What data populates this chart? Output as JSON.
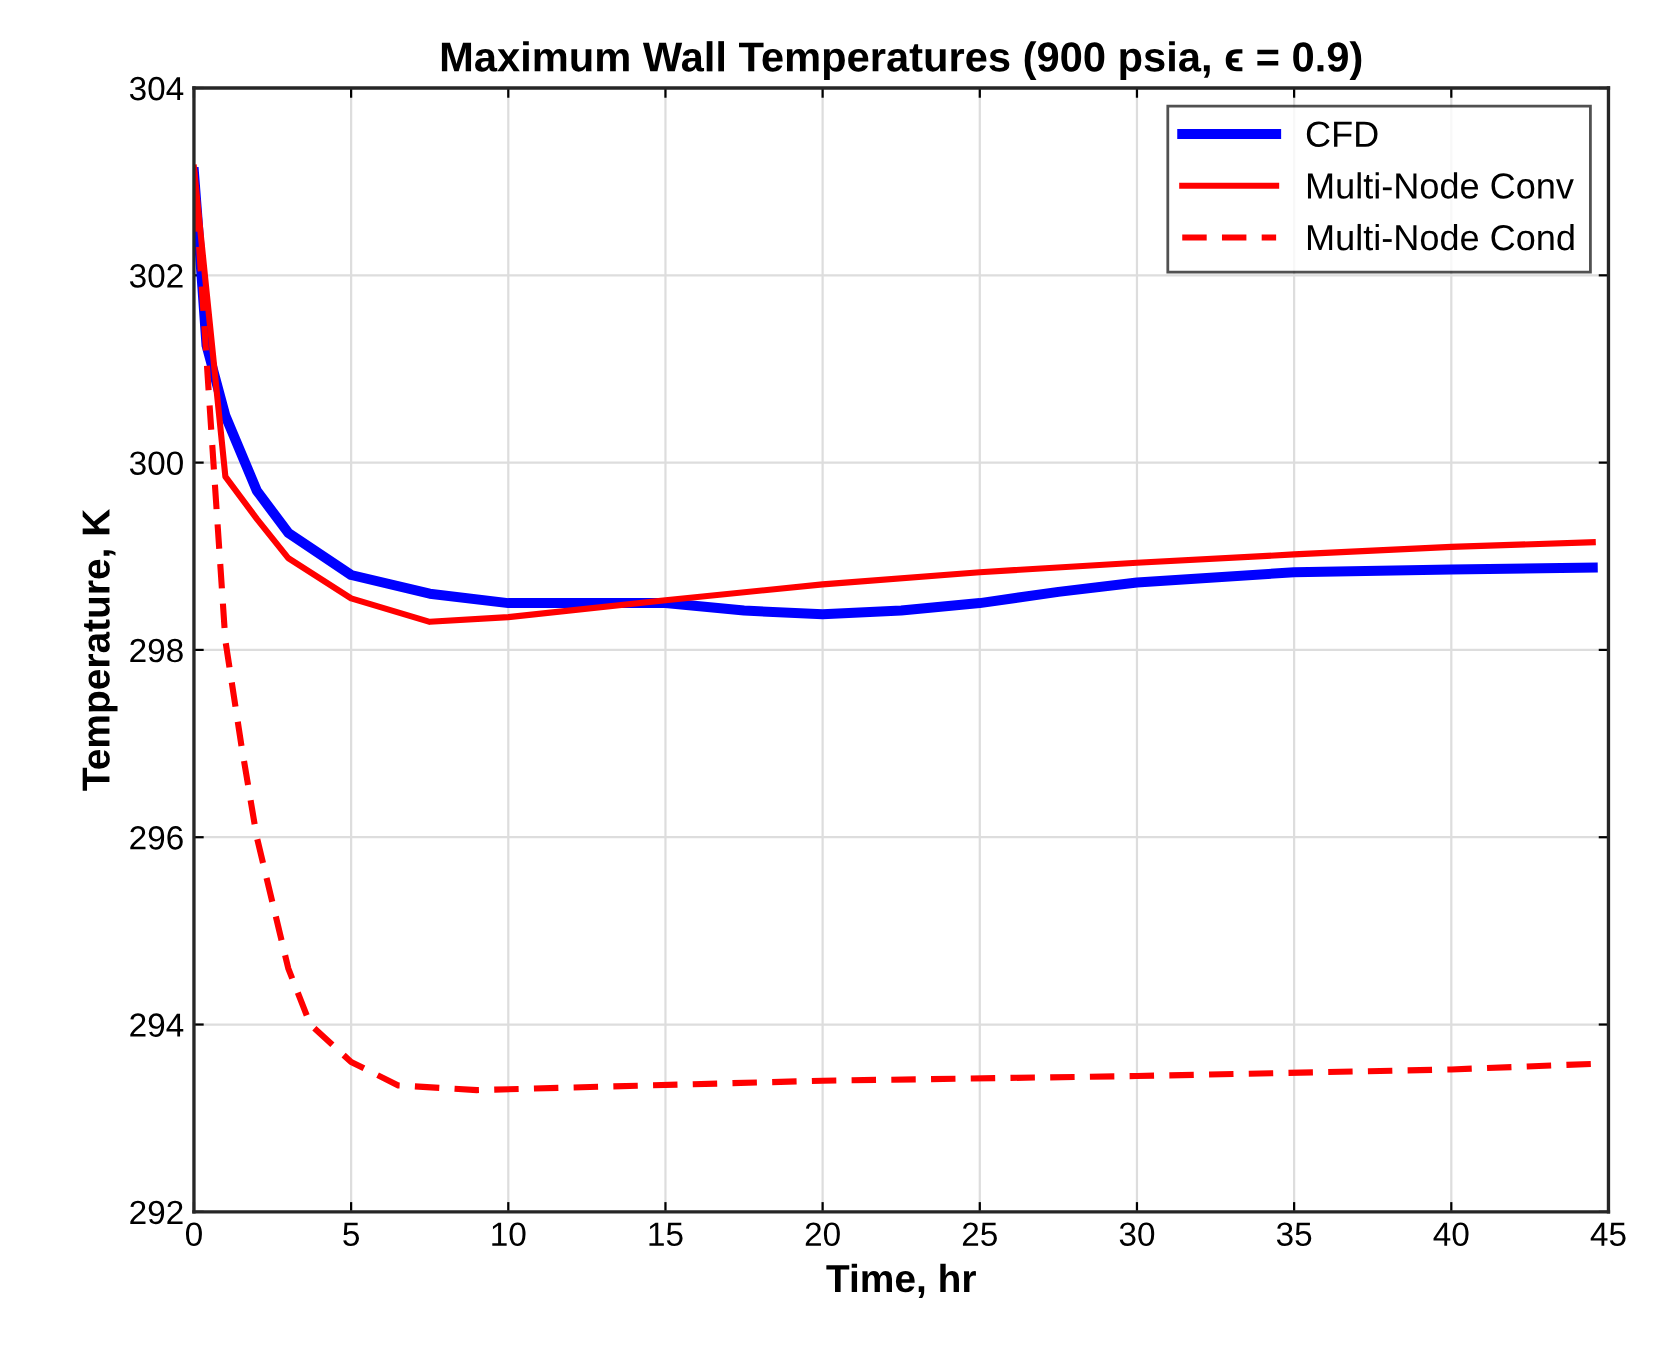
{
  "chart_data": {
    "type": "line",
    "title": "Maximum Wall Temperatures (900 psia, ϵ = 0.9)",
    "xlabel": "Time, hr",
    "ylabel": "Temperature, K",
    "xlim": [
      0,
      45
    ],
    "ylim": [
      292,
      304
    ],
    "xticks": [
      0,
      5,
      10,
      15,
      20,
      25,
      30,
      35,
      40,
      45
    ],
    "yticks": [
      292,
      294,
      296,
      298,
      300,
      302,
      304
    ],
    "grid": true,
    "legend": "top right",
    "series": [
      {
        "name": "CFD",
        "color": "#0000ff",
        "line_style": "solid",
        "x": [
          0,
          0.1,
          0.4,
          1,
          2,
          3,
          5,
          7.5,
          10,
          12.5,
          15,
          17.5,
          20,
          22.5,
          25,
          27.5,
          30,
          35,
          40,
          44.5
        ],
        "values": [
          303.1,
          302.66,
          301.25,
          300.5,
          299.7,
          299.25,
          298.8,
          298.6,
          298.5,
          298.5,
          298.5,
          298.42,
          298.38,
          298.42,
          298.5,
          298.62,
          298.72,
          298.83,
          298.86,
          298.88
        ]
      },
      {
        "name": "Multi-Node Conv",
        "color": "#ff0000",
        "line_style": "solid",
        "x": [
          0,
          0.5,
          1,
          2,
          3,
          5,
          7.5,
          10,
          15,
          20,
          25,
          30,
          35,
          40,
          44.5
        ],
        "values": [
          303.15,
          301.5,
          299.85,
          299.4,
          298.98,
          298.55,
          298.3,
          298.35,
          298.53,
          298.7,
          298.83,
          298.93,
          299.02,
          299.1,
          299.15
        ]
      },
      {
        "name": "Multi-Node Cond",
        "color": "#ff0000",
        "line_style": "dashed",
        "x": [
          0,
          0.5,
          1,
          1.5,
          2,
          3,
          3.7,
          5,
          6.5,
          9,
          20,
          30,
          40,
          44.5
        ],
        "values": [
          303.15,
          300.6,
          298.1,
          297.0,
          296.0,
          294.6,
          294.0,
          293.6,
          293.35,
          293.3,
          293.4,
          293.45,
          293.52,
          293.58
        ]
      }
    ]
  }
}
